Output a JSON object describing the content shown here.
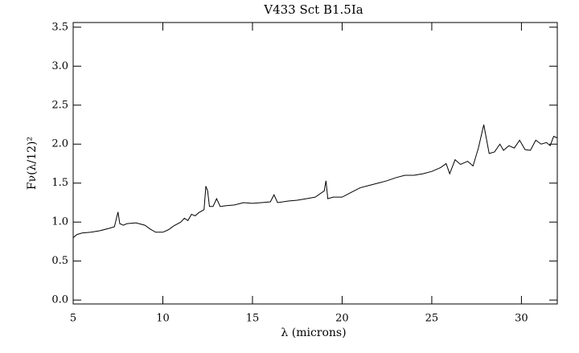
{
  "chart_data": {
    "type": "line",
    "title": "V433 Sct B1.5Ia",
    "x_label": "λ (microns)",
    "y_label": "Fν(λ/12)²",
    "x": [
      5.0,
      5.2,
      5.5,
      6.0,
      6.5,
      7.0,
      7.3,
      7.5,
      7.6,
      7.8,
      8.0,
      8.5,
      9.0,
      9.3,
      9.6,
      10.0,
      10.3,
      10.6,
      11.0,
      11.2,
      11.4,
      11.6,
      11.8,
      12.0,
      12.3,
      12.4,
      12.5,
      12.6,
      12.8,
      13.0,
      13.2,
      13.5,
      14.0,
      14.5,
      15.0,
      15.5,
      16.0,
      16.2,
      16.4,
      17.0,
      17.5,
      18.0,
      18.5,
      19.0,
      19.1,
      19.2,
      19.5,
      20.0,
      20.5,
      21.0,
      21.5,
      22.0,
      22.5,
      23.0,
      23.5,
      24.0,
      24.5,
      25.0,
      25.5,
      25.8,
      26.0,
      26.3,
      26.6,
      27.0,
      27.3,
      27.6,
      27.9,
      28.2,
      28.5,
      28.8,
      29.0,
      29.3,
      29.6,
      29.9,
      30.2,
      30.5,
      30.8,
      31.1,
      31.4,
      31.6,
      31.8,
      32.0
    ],
    "series": [
      {
        "color": "#000000",
        "values": [
          0.8,
          0.84,
          0.86,
          0.87,
          0.89,
          0.92,
          0.94,
          1.13,
          0.98,
          0.96,
          0.98,
          0.99,
          0.96,
          0.91,
          0.87,
          0.87,
          0.9,
          0.95,
          1.0,
          1.05,
          1.02,
          1.1,
          1.08,
          1.12,
          1.16,
          1.46,
          1.4,
          1.2,
          1.2,
          1.3,
          1.2,
          1.21,
          1.22,
          1.25,
          1.24,
          1.25,
          1.26,
          1.35,
          1.25,
          1.27,
          1.28,
          1.3,
          1.32,
          1.4,
          1.53,
          1.3,
          1.32,
          1.32,
          1.38,
          1.44,
          1.47,
          1.5,
          1.53,
          1.57,
          1.6,
          1.6,
          1.62,
          1.65,
          1.7,
          1.75,
          1.62,
          1.8,
          1.74,
          1.78,
          1.72,
          1.95,
          2.25,
          1.88,
          1.9,
          2.0,
          1.92,
          1.98,
          1.95,
          2.05,
          1.93,
          1.92,
          2.05,
          2.0,
          2.02,
          1.98,
          2.1,
          2.08
        ]
      }
    ],
    "xlim": [
      5,
      32
    ],
    "xticks": [
      5,
      10,
      15,
      20,
      25,
      30
    ],
    "ylim": [
      -0.05,
      3.56
    ],
    "yticks": [
      {
        "value": 0,
        "label": "0.0"
      },
      0.5,
      {
        "value": 1,
        "label": "1.0"
      },
      1.5,
      {
        "value": 2,
        "label": "2.0"
      },
      2.5,
      {
        "value": 3,
        "label": "3.0"
      },
      3.5
    ]
  }
}
